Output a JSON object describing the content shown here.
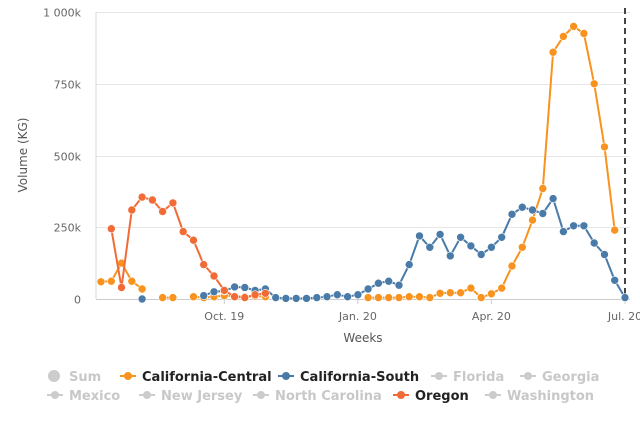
{
  "chart_data": {
    "type": "line",
    "title": "",
    "xlabel": "Weeks",
    "ylabel": "Volume (KG)",
    "ylim": [
      0,
      1000000
    ],
    "y_ticks": [
      {
        "value": 0,
        "label": "0"
      },
      {
        "value": 250000,
        "label": "250k"
      },
      {
        "value": 500000,
        "label": "500k"
      },
      {
        "value": 750000,
        "label": "750k"
      },
      {
        "value": 1000000,
        "label": "1 000k"
      }
    ],
    "x_range": [
      0,
      51
    ],
    "x_ticks": [
      {
        "value": 12,
        "label": "Oct. 19"
      },
      {
        "value": 25,
        "label": "Jan. 20"
      },
      {
        "value": 38,
        "label": "Apr. 20"
      },
      {
        "value": 51,
        "label": "Jul. 20"
      }
    ],
    "current_week_marker": 51,
    "series": [
      {
        "name": "California-Central",
        "color": "#f7931e",
        "visible": true,
        "points": [
          [
            0,
            60000
          ],
          [
            1,
            62000
          ],
          [
            2,
            125000
          ],
          [
            3,
            62000
          ],
          [
            4,
            35000
          ],
          [
            6,
            5000
          ],
          [
            7,
            5000
          ],
          [
            9,
            8000
          ],
          [
            10,
            5000
          ],
          [
            11,
            8000
          ],
          [
            12,
            12000
          ],
          [
            13,
            10000
          ],
          [
            14,
            8000
          ],
          [
            15,
            10000
          ],
          [
            16,
            8000
          ],
          [
            26,
            5000
          ],
          [
            27,
            5000
          ],
          [
            28,
            5000
          ],
          [
            29,
            5000
          ],
          [
            30,
            8000
          ],
          [
            31,
            8000
          ],
          [
            32,
            5000
          ],
          [
            33,
            20000
          ],
          [
            34,
            22000
          ],
          [
            35,
            22000
          ],
          [
            36,
            38000
          ],
          [
            37,
            5000
          ],
          [
            38,
            18000
          ],
          [
            39,
            38000
          ],
          [
            40,
            115000
          ],
          [
            41,
            180000
          ],
          [
            42,
            275000
          ],
          [
            43,
            385000
          ],
          [
            44,
            860000
          ],
          [
            45,
            915000
          ],
          [
            46,
            950000
          ],
          [
            47,
            925000
          ],
          [
            48,
            750000
          ],
          [
            49,
            530000
          ],
          [
            50,
            240000
          ]
        ]
      },
      {
        "name": "California-South",
        "color": "#4a7ba8",
        "visible": true,
        "points": [
          [
            4,
            0
          ],
          [
            10,
            12000
          ],
          [
            11,
            25000
          ],
          [
            12,
            28000
          ],
          [
            13,
            42000
          ],
          [
            14,
            40000
          ],
          [
            15,
            30000
          ],
          [
            16,
            35000
          ],
          [
            17,
            5000
          ],
          [
            18,
            2000
          ],
          [
            19,
            2000
          ],
          [
            20,
            2000
          ],
          [
            21,
            5000
          ],
          [
            22,
            8000
          ],
          [
            23,
            15000
          ],
          [
            24,
            8000
          ],
          [
            25,
            15000
          ],
          [
            26,
            35000
          ],
          [
            27,
            55000
          ],
          [
            28,
            62000
          ],
          [
            29,
            48000
          ],
          [
            30,
            120000
          ],
          [
            31,
            220000
          ],
          [
            32,
            180000
          ],
          [
            33,
            225000
          ],
          [
            34,
            150000
          ],
          [
            35,
            215000
          ],
          [
            36,
            185000
          ],
          [
            37,
            155000
          ],
          [
            38,
            180000
          ],
          [
            39,
            215000
          ],
          [
            40,
            295000
          ],
          [
            41,
            320000
          ],
          [
            42,
            310000
          ],
          [
            43,
            298000
          ],
          [
            44,
            350000
          ],
          [
            45,
            235000
          ],
          [
            46,
            255000
          ],
          [
            47,
            255000
          ],
          [
            48,
            195000
          ],
          [
            49,
            155000
          ],
          [
            50,
            65000
          ],
          [
            51,
            5000
          ]
        ]
      },
      {
        "name": "Oregon",
        "color": "#f16b36",
        "visible": true,
        "points": [
          [
            1,
            245000
          ],
          [
            2,
            40000
          ],
          [
            3,
            310000
          ],
          [
            4,
            355000
          ],
          [
            5,
            345000
          ],
          [
            6,
            305000
          ],
          [
            7,
            335000
          ],
          [
            8,
            235000
          ],
          [
            9,
            205000
          ],
          [
            10,
            120000
          ],
          [
            11,
            80000
          ],
          [
            12,
            30000
          ],
          [
            13,
            8000
          ],
          [
            14,
            5000
          ],
          [
            15,
            15000
          ],
          [
            16,
            20000
          ]
        ]
      }
    ]
  },
  "legend": {
    "items": [
      {
        "name": "Sum",
        "enabled": false,
        "color": "#cccccc",
        "marker": "circle"
      },
      {
        "name": "California-Central",
        "enabled": true,
        "color": "#f7931e",
        "marker": "line"
      },
      {
        "name": "California-South",
        "enabled": true,
        "color": "#4a7ba8",
        "marker": "line"
      },
      {
        "name": "Florida",
        "enabled": false,
        "color": "#cccccc",
        "marker": "line"
      },
      {
        "name": "Georgia",
        "enabled": false,
        "color": "#cccccc",
        "marker": "line"
      },
      {
        "name": "Mexico",
        "enabled": false,
        "color": "#cccccc",
        "marker": "line"
      },
      {
        "name": "New Jersey",
        "enabled": false,
        "color": "#cccccc",
        "marker": "line"
      },
      {
        "name": "North Carolina",
        "enabled": false,
        "color": "#cccccc",
        "marker": "line"
      },
      {
        "name": "Oregon",
        "enabled": true,
        "color": "#f16b36",
        "marker": "line"
      },
      {
        "name": "Washington",
        "enabled": false,
        "color": "#cccccc",
        "marker": "line"
      }
    ]
  }
}
